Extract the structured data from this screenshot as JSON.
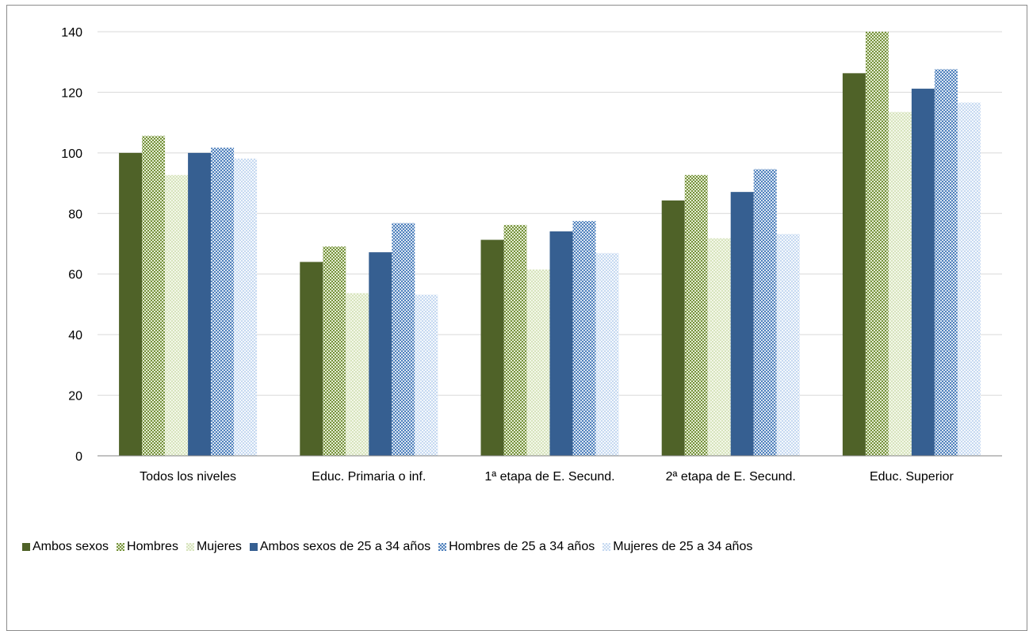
{
  "chart_data": {
    "type": "bar",
    "title": "",
    "xlabel": "",
    "ylabel": "",
    "ylim": [
      0,
      140
    ],
    "yticks": [
      0,
      20,
      40,
      60,
      80,
      100,
      120,
      140
    ],
    "grid": true,
    "legend_position": "bottom",
    "categories": [
      "Todos los niveles",
      "Educ. Primaria o inf.",
      "1ª etapa de E. Secund.",
      "2ª etapa de E. Secund.",
      "Educ. Superior"
    ],
    "series": [
      {
        "name": "Ambos sexos",
        "values": [
          100,
          64,
          71.3,
          84.3,
          126.3
        ],
        "color": "#4f6228",
        "pattern": "solid"
      },
      {
        "name": "Hombres",
        "values": [
          105.6,
          69.1,
          76.2,
          92.7,
          140
        ],
        "color": "#77933c",
        "pattern": "checker-dense"
      },
      {
        "name": "Mujeres",
        "values": [
          92.7,
          53.7,
          61.5,
          71.8,
          113.5
        ],
        "color": "#d7e4bd",
        "pattern": "checker-light"
      },
      {
        "name": "Ambos sexos de 25 a 34 años",
        "values": [
          100,
          67.2,
          74.1,
          87.1,
          121.2
        ],
        "color": "#365f91",
        "pattern": "solid"
      },
      {
        "name": "Hombres de 25 a 34 años",
        "values": [
          101.7,
          76.8,
          77.5,
          94.6,
          127.6
        ],
        "color": "#4f81bd",
        "pattern": "checker-dense"
      },
      {
        "name": "Mujeres de 25 a 34 años",
        "values": [
          98.1,
          53.2,
          66.9,
          73.2,
          116.6
        ],
        "color": "#c6d9f1",
        "pattern": "checker-light"
      }
    ]
  }
}
